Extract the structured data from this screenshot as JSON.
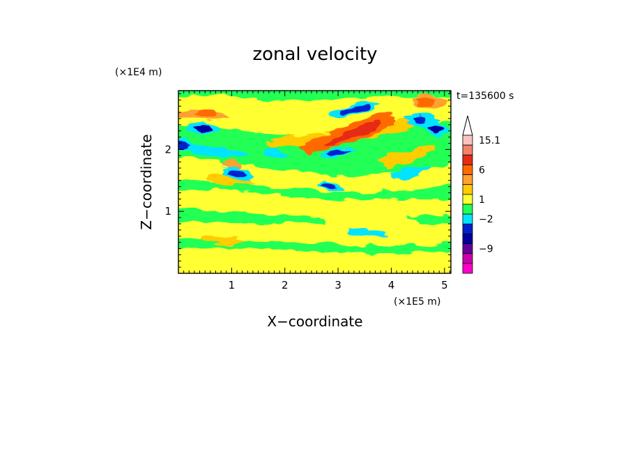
{
  "chart_data": {
    "type": "heatmap",
    "title": "zonal velocity",
    "time_label": "t=135600 s",
    "xlabel": "X−coordinate",
    "ylabel": "Z−coordinate",
    "x_unit": "(×1E5 m)",
    "y_unit": "(×1E4 m)",
    "xlim": [
      0,
      5.12
    ],
    "ylim": [
      0,
      2.95
    ],
    "x_ticks": [
      1,
      2,
      3,
      4,
      5
    ],
    "y_ticks": [
      1,
      2
    ],
    "colorbar": {
      "labels": [
        {
          "value": 15.1,
          "text": "15.1"
        },
        {
          "value": 6,
          "text": "6"
        },
        {
          "value": 1,
          "text": "1"
        },
        {
          "value": -2,
          "text": "−2"
        },
        {
          "value": -9,
          "text": "−9"
        }
      ],
      "levels_top_to_bottom": [
        {
          "color": "#ffffff"
        },
        {
          "color": "#f9c4c0"
        },
        {
          "color": "#f4806e"
        },
        {
          "color": "#e62b14"
        },
        {
          "color": "#ff6a00"
        },
        {
          "color": "#ffa030"
        },
        {
          "color": "#ffcc00"
        },
        {
          "color": "#ffff33"
        },
        {
          "color": "#22ff55"
        },
        {
          "color": "#00e4ff"
        },
        {
          "color": "#0022cc"
        },
        {
          "color": "#0000a0"
        },
        {
          "color": "#660099"
        },
        {
          "color": "#cc00aa"
        },
        {
          "color": "#ff00cc"
        }
      ]
    },
    "field_features": [
      {
        "x": 0.45,
        "z": 2.4,
        "value": -9
      },
      {
        "x": 0.05,
        "z": 2.1,
        "value": -9
      },
      {
        "x": 4.9,
        "z": 2.3,
        "value": -9
      },
      {
        "x": 4.5,
        "z": 2.45,
        "value": -5
      },
      {
        "x": 3.6,
        "z": 2.2,
        "value": 6
      },
      {
        "x": 3.3,
        "z": 2.4,
        "value": -5
      },
      {
        "x": 2.9,
        "z": 1.9,
        "value": -5
      },
      {
        "x": 0.5,
        "z": 2.65,
        "value": 6
      },
      {
        "x": 0.95,
        "z": 1.5,
        "value": -2
      },
      {
        "x": 0.8,
        "z": 0.5,
        "value": 1
      },
      {
        "x": 2.8,
        "z": 0.6,
        "value": 1
      }
    ]
  }
}
